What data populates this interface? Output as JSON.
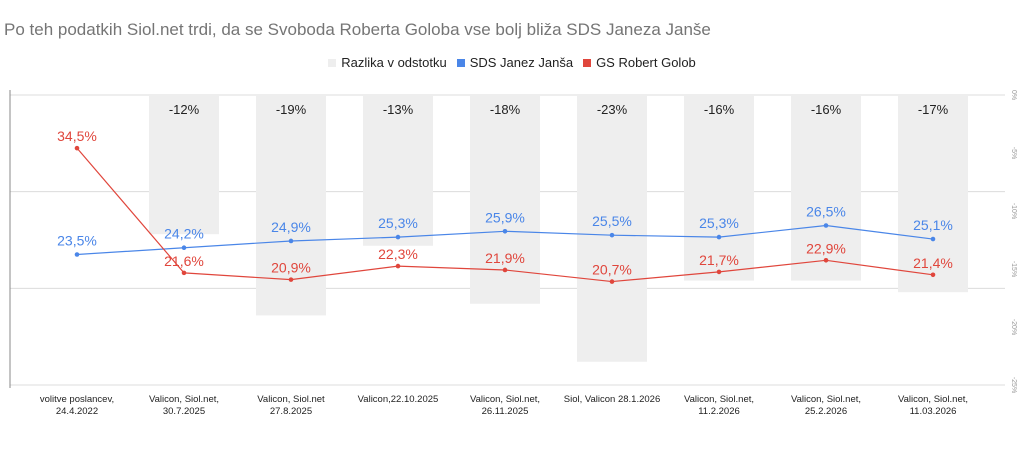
{
  "chart_data": {
    "type": "bar+line",
    "title": "Po teh podatkih Siol.net trdi, da se Svoboda Roberta Goloba vse bolj bliža SDS Janeza Janše",
    "categories": [
      [
        "volitve poslancev,",
        "24.4.2022"
      ],
      [
        "Valicon, Siol.net,",
        "30.7.2025"
      ],
      [
        "Valicon, Siol.net",
        "27.8.2025"
      ],
      [
        "Valicon,22.10.2025"
      ],
      [
        "Valicon, Siol.net,",
        "26.11.2025"
      ],
      [
        "Siol, Valicon 28.1.2026"
      ],
      [
        "Valicon, Siol.net,",
        "11.2.2026"
      ],
      [
        "Valicon, Siol.net,",
        "25.2.2026"
      ],
      [
        "Valicon, Siol.net,",
        "11.03.2026"
      ]
    ],
    "series": [
      {
        "name": "Razlika v odstotku",
        "axis": "right",
        "kind": "bar",
        "color": "#eeeeee",
        "values": [
          null,
          -12,
          -19,
          -13,
          -18,
          -23,
          -16,
          -16,
          -17
        ],
        "labels": [
          "",
          "-12%",
          "-19%",
          "-13%",
          "-18%",
          "-23%",
          "-16%",
          "-16%",
          "-17%"
        ]
      },
      {
        "name": "SDS Janez Janša",
        "axis": "left",
        "kind": "line",
        "color": "#4a86e8",
        "values": [
          23.5,
          24.2,
          24.9,
          25.3,
          25.9,
          25.5,
          25.3,
          26.5,
          25.1
        ],
        "labels": [
          "23,5%",
          "24,2%",
          "24,9%",
          "25,3%",
          "25,9%",
          "25,5%",
          "25,3%",
          "26,5%",
          "25,1%"
        ]
      },
      {
        "name": "GS Robert Golob",
        "axis": "left",
        "kind": "line",
        "color": "#e0463c",
        "values": [
          34.5,
          21.6,
          20.9,
          22.3,
          21.9,
          20.7,
          21.7,
          22.9,
          21.4
        ],
        "labels": [
          "34,5%",
          "21,6%",
          "20,9%",
          "22,3%",
          "21,9%",
          "20,7%",
          "21,7%",
          "22,9%",
          "21,4%"
        ]
      }
    ],
    "left_ylim": [
      10,
      40
    ],
    "right_ylim": [
      -25,
      0
    ],
    "right_ticks": [
      "0%",
      "-5%",
      "-10%",
      "-15%",
      "-20%",
      "-25%"
    ],
    "legend_position": "top-center",
    "grid": true
  }
}
